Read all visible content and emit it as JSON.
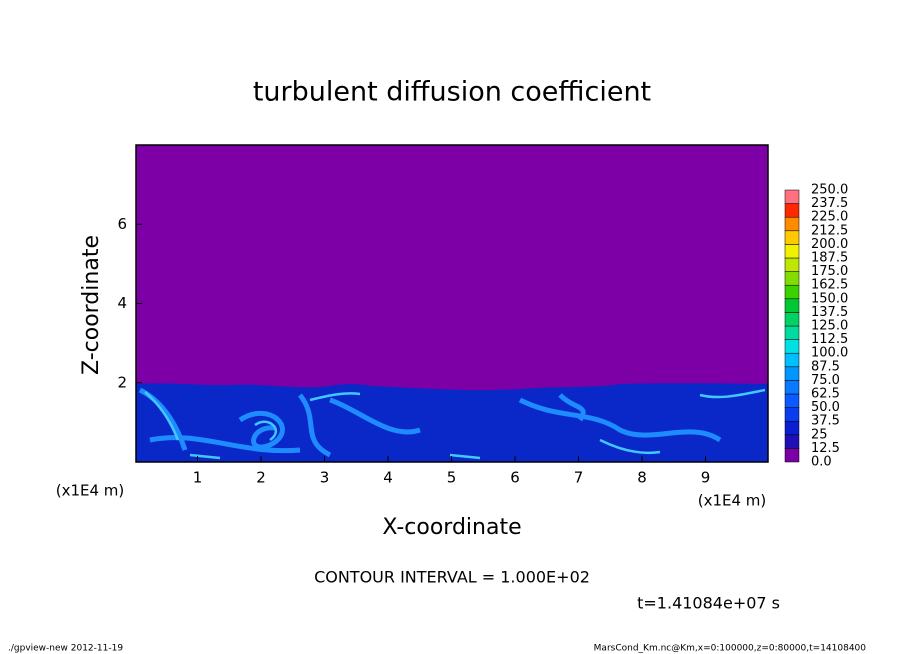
{
  "chart_data": {
    "type": "contour",
    "title": "turbulent diffusion coefficient",
    "xlabel": "X-coordinate",
    "ylabel": "Z-coordinate",
    "xunit": "(x1E4 m)",
    "yunit": "(x1E4 m)",
    "xlim": [
      0,
      10
    ],
    "xticks": [
      1,
      2,
      3,
      4,
      5,
      6,
      7,
      8,
      9
    ],
    "ylim": [
      0,
      8
    ],
    "yticks": [
      2,
      4,
      6
    ],
    "levels": [
      {
        "value": 0,
        "label": "0.0"
      },
      12.5,
      25,
      37.5,
      {
        "value": 50,
        "label": "50.0"
      },
      62.5,
      {
        "value": 75,
        "label": "75.0"
      },
      87.5,
      {
        "value": 100,
        "label": "100.0"
      },
      112.5,
      {
        "value": 125,
        "label": "125.0"
      },
      137.5,
      {
        "value": 150,
        "label": "150.0"
      },
      162.5,
      {
        "value": 175,
        "label": "175.0"
      },
      187.5,
      {
        "value": 200,
        "label": "200.0"
      },
      212.5,
      {
        "value": 225,
        "label": "225.0"
      },
      237.5,
      {
        "value": 250,
        "label": "250.0"
      }
    ],
    "colors": [
      "#7c00a5",
      "#1e10b4",
      "#0a1ed2",
      "#0a3cf0",
      "#0a5aff",
      "#0a78ff",
      "#0096ff",
      "#00beff",
      "#00e1e6",
      "#00dca0",
      "#00d264",
      "#00c832",
      "#3cd200",
      "#82dc00",
      "#bee600",
      "#f0f000",
      "#ffc800",
      "#ff8c00",
      "#ff2800",
      "#ff7080"
    ],
    "contour_interval": "CONTOUR INTERVAL = 1.000E+02",
    "time": "t=1.41084e+07 s",
    "footer_left": "./gpview-new  2012-11-19",
    "footer_right": "MarsCond_Km.nc@Km,x=0:100000,z=0:80000,t=14108400"
  }
}
